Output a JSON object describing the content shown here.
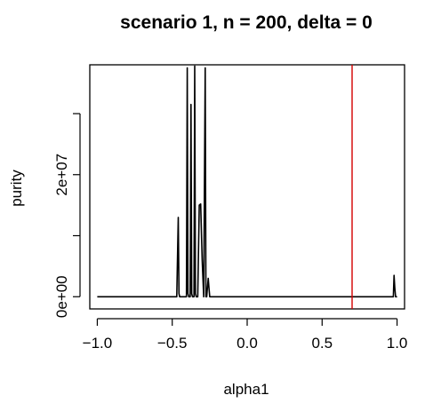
{
  "chart_data": {
    "type": "line",
    "title": "scenario 1, n = 200, delta = 0",
    "xlabel": "alpha1",
    "ylabel": "purity",
    "xlim": [
      -1.05,
      1.05
    ],
    "ylim": [
      -2000000,
      38000000
    ],
    "x_ticks": [
      {
        "value": -1.0,
        "label": "−1.0"
      },
      {
        "value": -0.5,
        "label": "−0.5"
      },
      {
        "value": 0.0,
        "label": "0.0"
      },
      {
        "value": 0.5,
        "label": "0.5"
      },
      {
        "value": 1.0,
        "label": "1.0"
      }
    ],
    "y_ticks": [
      {
        "value": 0,
        "label": "0e+00"
      },
      {
        "value": 10000000,
        "label": ""
      },
      {
        "value": 20000000,
        "label": "2e+07"
      },
      {
        "value": 30000000,
        "label": ""
      }
    ],
    "series": [
      {
        "color": "#000000",
        "x": [
          -1.0,
          -0.47,
          -0.46,
          -0.455,
          -0.45,
          -0.44,
          -0.43,
          -0.42,
          -0.41,
          -0.405,
          -0.4,
          -0.395,
          -0.39,
          -0.385,
          -0.38,
          -0.375,
          -0.37,
          -0.365,
          -0.36,
          -0.355,
          -0.35,
          -0.345,
          -0.34,
          -0.335,
          -0.33,
          -0.32,
          -0.31,
          -0.3,
          -0.29,
          -0.28,
          -0.275,
          -0.27,
          -0.265,
          -0.26,
          -0.255,
          -0.25,
          -0.245,
          -0.24,
          -0.235,
          -0.23,
          -0.22,
          -0.2,
          -0.15,
          0.0,
          0.5,
          0.97,
          0.975,
          0.98,
          0.985,
          0.99,
          1.0
        ],
        "y": [
          0,
          0,
          13000000,
          500000,
          0,
          0,
          0,
          0,
          0,
          0,
          37500000,
          500000,
          0,
          0,
          0,
          31500000,
          500000,
          0,
          0,
          0,
          37800000,
          500000,
          0,
          0,
          0,
          15000000,
          15200000,
          6000000,
          0,
          37500000,
          0,
          0,
          1500000,
          3000000,
          1500000,
          0,
          0,
          0,
          0,
          0,
          0,
          0,
          0,
          0,
          0,
          0,
          0,
          3500000,
          1500000,
          0,
          0
        ]
      }
    ],
    "reference_line": {
      "x": 0.7,
      "color": "#d40000"
    },
    "grid": false
  }
}
